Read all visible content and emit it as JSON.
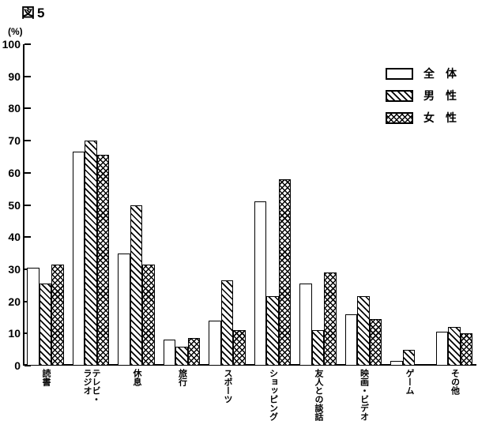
{
  "title": "図5",
  "y_axis_unit": "(%)",
  "colors": {
    "ink": "#000000",
    "paper": "#ffffff"
  },
  "legend": {
    "items": [
      {
        "label": "全　体",
        "series": "全体",
        "pattern": "plain"
      },
      {
        "label": "男　性",
        "series": "男性",
        "pattern": "diag"
      },
      {
        "label": "女　性",
        "series": "女性",
        "pattern": "cross"
      }
    ]
  },
  "chart_data": {
    "type": "bar",
    "title": "図5",
    "categories": [
      "読書",
      "テレビ・ラジオ",
      "休息",
      "旅行",
      "スポーツ",
      "ショッピング",
      "友人との談話",
      "映画・ビデオ",
      "ゲーム",
      "その他"
    ],
    "series": [
      {
        "name": "全体",
        "pattern": "plain",
        "values": [
          30.5,
          66.5,
          35,
          8,
          14,
          51,
          25.5,
          16,
          1.5,
          10.5
        ]
      },
      {
        "name": "男性",
        "pattern": "diag",
        "values": [
          25.5,
          70,
          50,
          6,
          26.5,
          21.5,
          11,
          21.5,
          5,
          12
        ]
      },
      {
        "name": "女性",
        "pattern": "cross",
        "values": [
          31.5,
          65.5,
          31.5,
          8.5,
          11,
          58,
          29,
          14.5,
          0.5,
          10
        ]
      }
    ],
    "xlabel": "",
    "ylabel": "(%)",
    "ylim": [
      0,
      100
    ],
    "yticks": [
      0,
      10,
      20,
      30,
      40,
      50,
      60,
      70,
      80,
      90,
      100
    ],
    "grid": false,
    "legend_position": "upper right",
    "bar_style": {
      "fill": "#ffffff",
      "stroke": "#000000"
    }
  }
}
